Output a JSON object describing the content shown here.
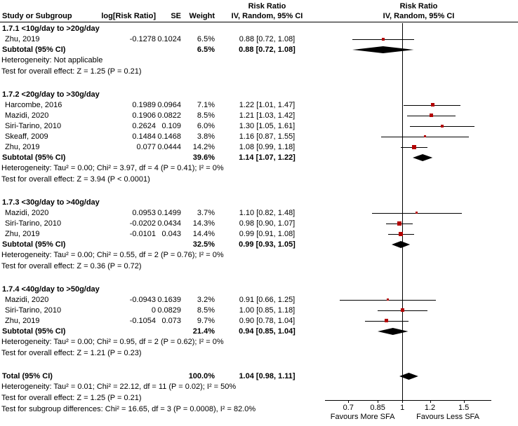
{
  "header": {
    "study_col": "Study or Subgroup",
    "log_rr_col": "log[Risk Ratio]",
    "se_col": "SE",
    "weight_col": "Weight",
    "effect_col_line1": "Risk Ratio",
    "effect_col_line2": "IV, Random, 95% CI",
    "plot_col_line1": "Risk Ratio",
    "plot_col_line2": "IV, Random, 95% CI"
  },
  "chart_data": {
    "type": "forest",
    "effect_measure": "Risk Ratio",
    "model": "IV, Random, 95% CI",
    "x_scale": "log",
    "marker_color": "#b30000",
    "summary_color": "#000000",
    "axis": {
      "range": [
        0.6,
        1.8
      ],
      "ticks": [
        0.7,
        0.85,
        1,
        1.2,
        1.5
      ],
      "tick_labels": [
        "0.7",
        "0.85",
        "1",
        "1.2",
        "1.5"
      ],
      "label_left": "Favours More SFA",
      "label_right": "Favours Less SFA"
    },
    "groups": [
      {
        "name": "1.7.1 <10g/day to >20g/day",
        "studies": [
          {
            "study": "Zhu, 2019",
            "log_rr": "-0.1278",
            "se": "0.1024",
            "weight": "6.5%",
            "weight_value": 6.5,
            "rr": 0.88,
            "lo": 0.72,
            "hi": 1.08,
            "ci_text": "0.88 [0.72, 1.08]"
          }
        ],
        "subtotal": {
          "label": "Subtotal (95% CI)",
          "weight": "6.5%",
          "rr": 0.88,
          "lo": 0.72,
          "hi": 1.08,
          "ci_text": "0.88 [0.72, 1.08]"
        },
        "heterogeneity": "Heterogeneity: Not applicable",
        "overall_effect": "Test for overall effect: Z = 1.25 (P = 0.21)"
      },
      {
        "name": "1.7.2 <20g/day to >30g/day",
        "studies": [
          {
            "study": "Harcombe, 2016",
            "log_rr": "0.1989",
            "se": "0.0964",
            "weight": "7.1%",
            "weight_value": 7.1,
            "rr": 1.22,
            "lo": 1.01,
            "hi": 1.47,
            "ci_text": "1.22 [1.01, 1.47]"
          },
          {
            "study": "Mazidi, 2020",
            "log_rr": "0.1906",
            "se": "0.0822",
            "weight": "8.5%",
            "weight_value": 8.5,
            "rr": 1.21,
            "lo": 1.03,
            "hi": 1.42,
            "ci_text": "1.21 [1.03, 1.42]"
          },
          {
            "study": "Siri-Tarino, 2010",
            "log_rr": "0.2624",
            "se": "0.109",
            "weight": "6.0%",
            "weight_value": 6.0,
            "rr": 1.3,
            "lo": 1.05,
            "hi": 1.61,
            "ci_text": "1.30 [1.05, 1.61]"
          },
          {
            "study": "Skeaff, 2009",
            "log_rr": "0.1484",
            "se": "0.1468",
            "weight": "3.8%",
            "weight_value": 3.8,
            "rr": 1.16,
            "lo": 0.87,
            "hi": 1.55,
            "ci_text": "1.16 [0.87, 1.55]"
          },
          {
            "study": "Zhu, 2019",
            "log_rr": "0.077",
            "se": "0.0444",
            "weight": "14.2%",
            "weight_value": 14.2,
            "rr": 1.08,
            "lo": 0.99,
            "hi": 1.18,
            "ci_text": "1.08 [0.99, 1.18]"
          }
        ],
        "subtotal": {
          "label": "Subtotal (95% CI)",
          "weight": "39.6%",
          "rr": 1.14,
          "lo": 1.07,
          "hi": 1.22,
          "ci_text": "1.14 [1.07, 1.22]"
        },
        "heterogeneity": "Heterogeneity: Tau² = 0.00; Chi² = 3.97, df = 4 (P = 0.41); I² = 0%",
        "overall_effect": "Test for overall effect: Z = 3.94 (P < 0.0001)"
      },
      {
        "name": "1.7.3 <30g/day to >40g/day",
        "studies": [
          {
            "study": "Mazidi, 2020",
            "log_rr": "0.0953",
            "se": "0.1499",
            "weight": "3.7%",
            "weight_value": 3.7,
            "rr": 1.1,
            "lo": 0.82,
            "hi": 1.48,
            "ci_text": "1.10 [0.82, 1.48]"
          },
          {
            "study": "Siri-Tarino, 2010",
            "log_rr": "-0.0202",
            "se": "0.0434",
            "weight": "14.3%",
            "weight_value": 14.3,
            "rr": 0.98,
            "lo": 0.9,
            "hi": 1.07,
            "ci_text": "0.98 [0.90, 1.07]"
          },
          {
            "study": "Zhu, 2019",
            "log_rr": "-0.0101",
            "se": "0.043",
            "weight": "14.4%",
            "weight_value": 14.4,
            "rr": 0.99,
            "lo": 0.91,
            "hi": 1.08,
            "ci_text": "0.99 [0.91, 1.08]"
          }
        ],
        "subtotal": {
          "label": "Subtotal (95% CI)",
          "weight": "32.5%",
          "rr": 0.99,
          "lo": 0.93,
          "hi": 1.05,
          "ci_text": "0.99 [0.93, 1.05]"
        },
        "heterogeneity": "Heterogeneity: Tau² = 0.00; Chi² = 0.55, df = 2 (P = 0.76); I² = 0%",
        "overall_effect": "Test for overall effect: Z = 0.36 (P = 0.72)"
      },
      {
        "name": "1.7.4 <40g/day to >50g/day",
        "studies": [
          {
            "study": "Mazidi, 2020",
            "log_rr": "-0.0943",
            "se": "0.1639",
            "weight": "3.2%",
            "weight_value": 3.2,
            "rr": 0.91,
            "lo": 0.66,
            "hi": 1.25,
            "ci_text": "0.91 [0.66, 1.25]"
          },
          {
            "study": "Siri-Tarino, 2010",
            "log_rr": "0",
            "se": "0.0829",
            "weight": "8.5%",
            "weight_value": 8.5,
            "rr": 1.0,
            "lo": 0.85,
            "hi": 1.18,
            "ci_text": "1.00 [0.85, 1.18]"
          },
          {
            "study": "Zhu, 2019",
            "log_rr": "-0.1054",
            "se": "0.073",
            "weight": "9.7%",
            "weight_value": 9.7,
            "rr": 0.9,
            "lo": 0.78,
            "hi": 1.04,
            "ci_text": "0.90 [0.78, 1.04]"
          }
        ],
        "subtotal": {
          "label": "Subtotal (95% CI)",
          "weight": "21.4%",
          "rr": 0.94,
          "lo": 0.85,
          "hi": 1.04,
          "ci_text": "0.94 [0.85, 1.04]"
        },
        "heterogeneity": "Heterogeneity: Tau² = 0.00; Chi² = 0.95, df = 2 (P = 0.62); I² = 0%",
        "overall_effect": "Test for overall effect: Z = 1.21 (P = 0.23)"
      }
    ],
    "total": {
      "label": "Total (95% CI)",
      "weight": "100.0%",
      "rr": 1.04,
      "lo": 0.98,
      "hi": 1.11,
      "ci_text": "1.04 [0.98, 1.11]",
      "heterogeneity": "Heterogeneity: Tau² = 0.01; Chi² = 22.12, df = 11 (P = 0.02); I² = 50%",
      "overall_effect": "Test for overall effect: Z = 1.25 (P = 0.21)",
      "subgroup_differences": "Test for subgroup differences: Chi² = 16.65, df = 3 (P = 0.0008), I² = 82.0%"
    }
  }
}
